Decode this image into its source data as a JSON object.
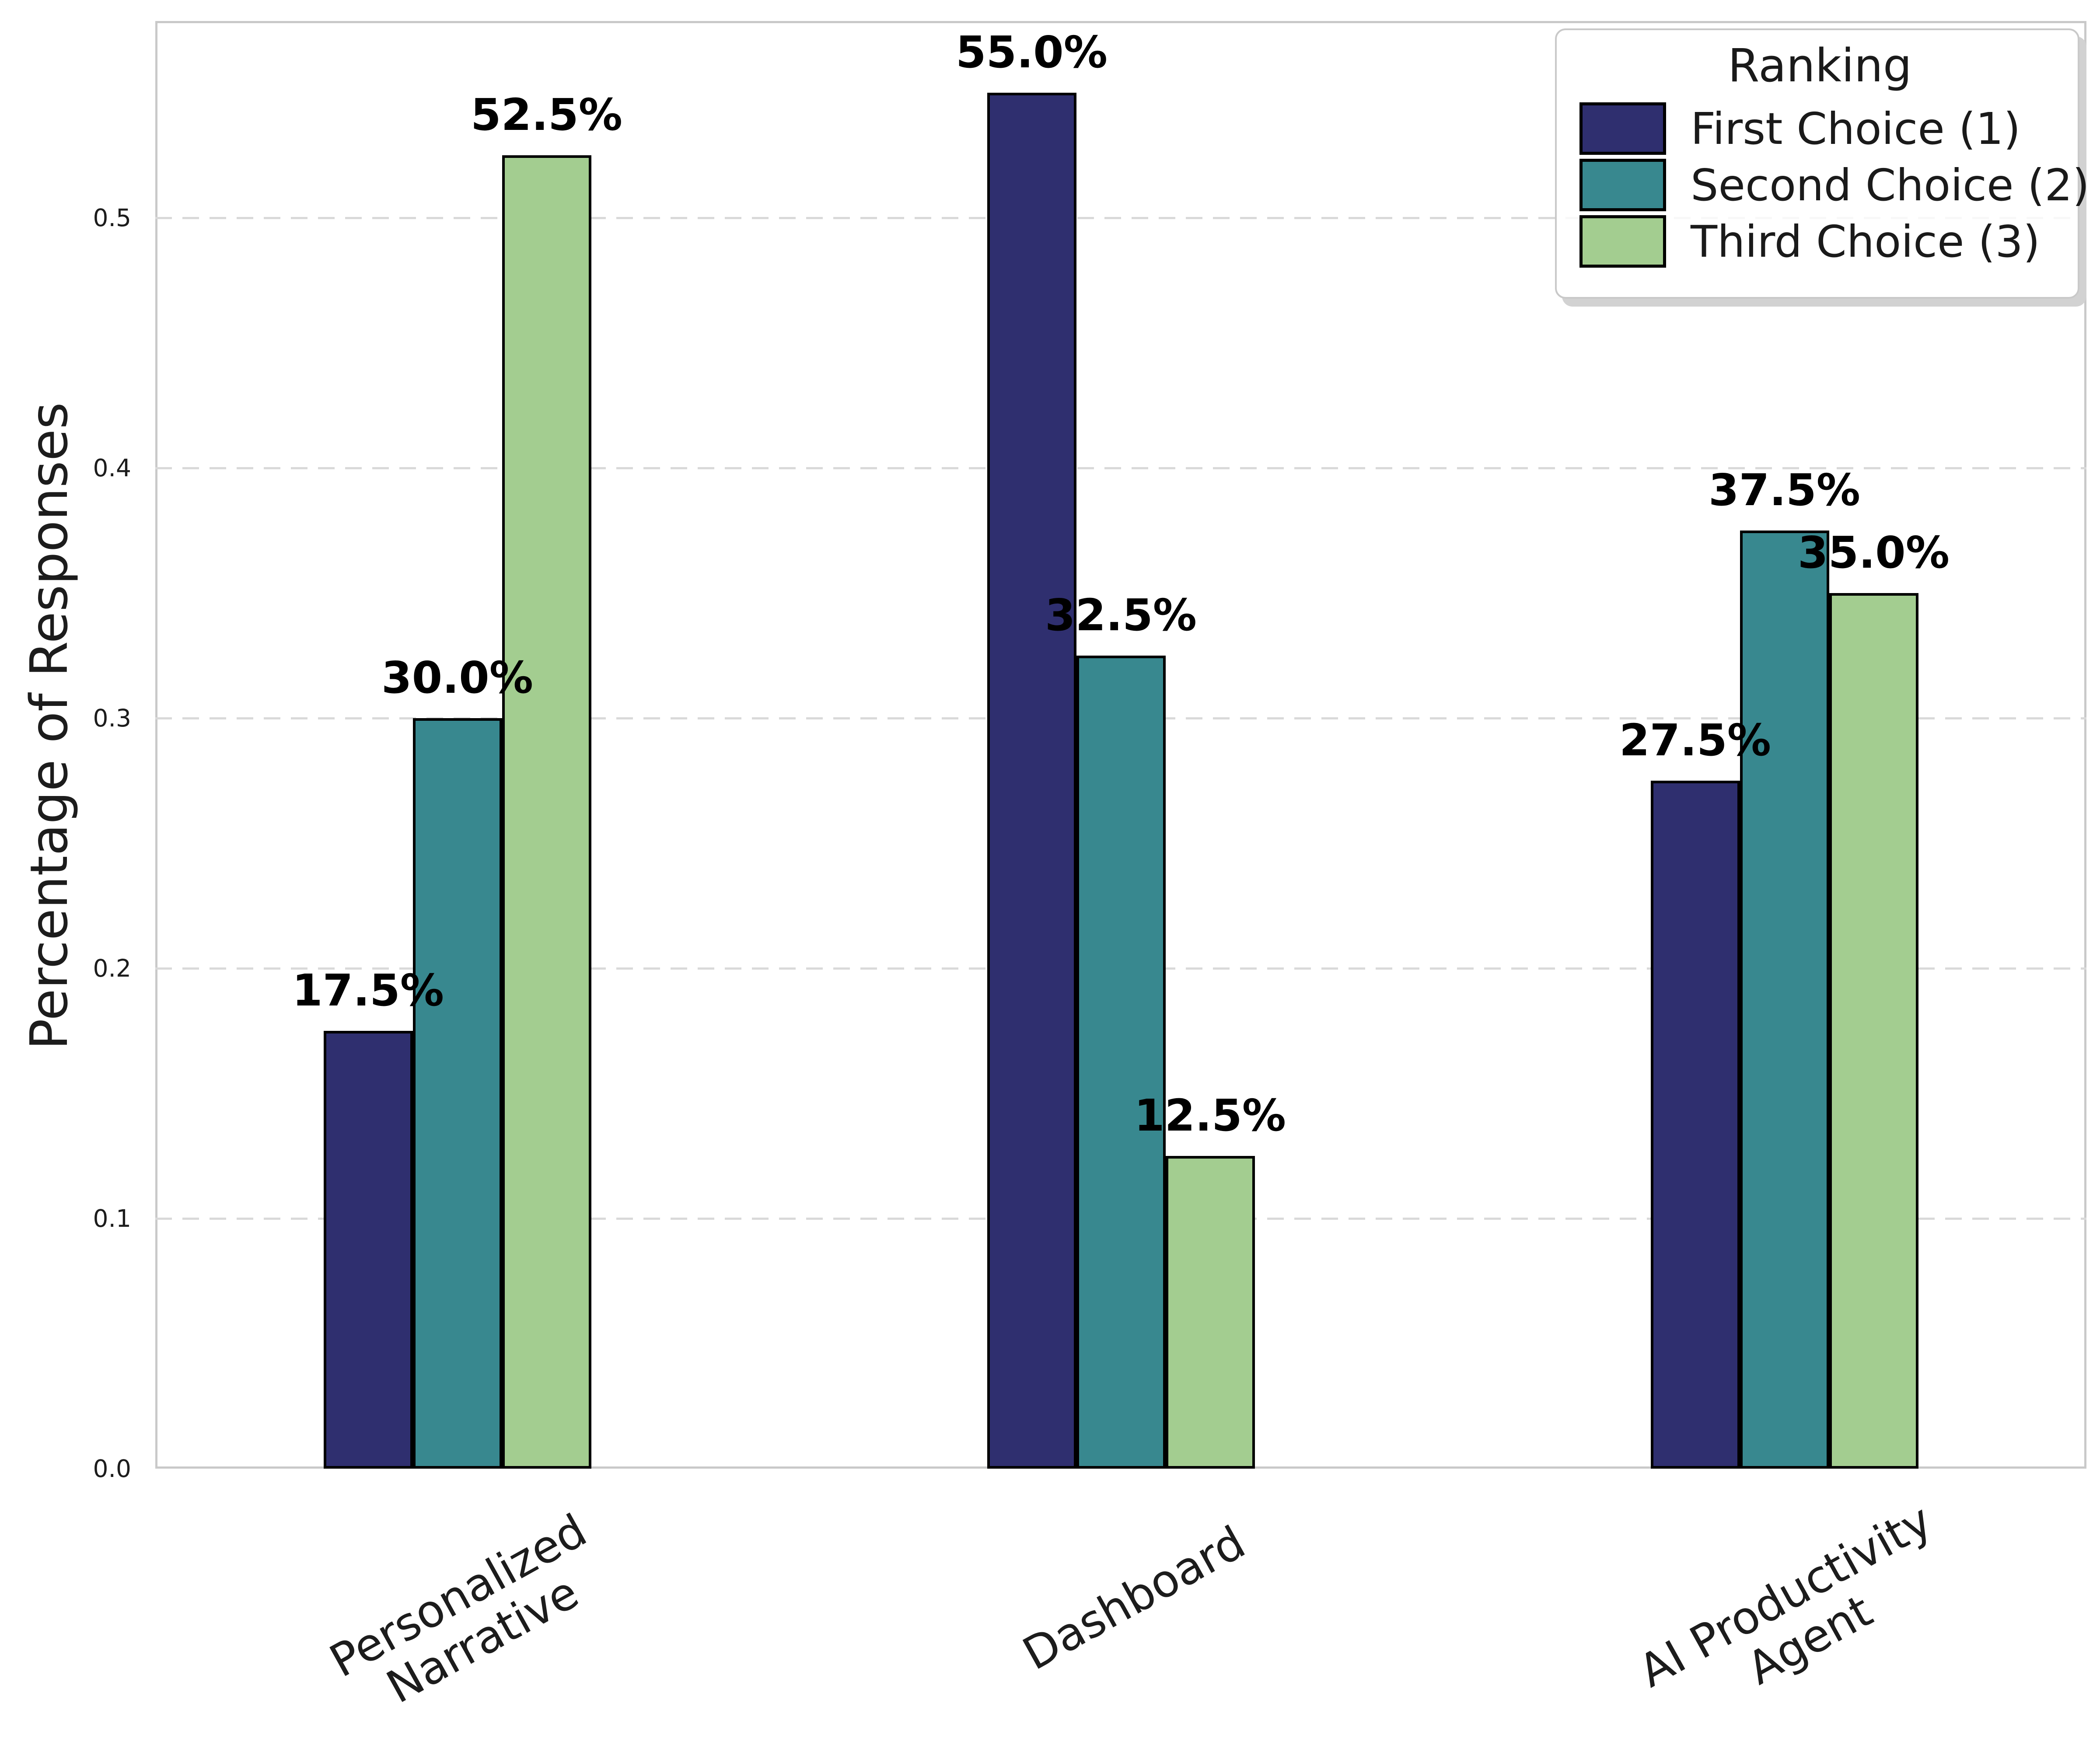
{
  "figure": {
    "background": "#ffffff",
    "text_color": "#1c1c1c",
    "spine_color": "#c9c9c9",
    "grid_color": "#d9d9d9",
    "bar_edge_color": "#000000"
  },
  "chart_data": {
    "type": "bar",
    "title": "",
    "xlabel": "",
    "ylabel": "Percentage of Responses",
    "categories": [
      "Personalized\nNarrative",
      "Dashboard",
      "AI Productivity\nAgent"
    ],
    "series": [
      {
        "name": "First Choice (1)",
        "color": "#2f2f6f",
        "values": [
          0.175,
          0.55,
          0.275
        ],
        "labels": [
          "17.5%",
          "55.0%",
          "27.5%"
        ]
      },
      {
        "name": "Second Choice (2)",
        "color": "#38888f",
        "values": [
          0.3,
          0.325,
          0.375
        ],
        "labels": [
          "30.0%",
          "32.5%",
          "37.5%"
        ]
      },
      {
        "name": "Third Choice (3)",
        "color": "#a3cd90",
        "values": [
          0.525,
          0.125,
          0.35
        ],
        "labels": [
          "52.5%",
          "12.5%",
          "35.0%"
        ]
      }
    ],
    "ylim": [
      0,
      0.5786
    ],
    "yticks": [
      0.0,
      0.1,
      0.2,
      0.3,
      0.4,
      0.5
    ],
    "ytick_labels": [
      "0.0",
      "0.1",
      "0.2",
      "0.3",
      "0.4",
      "0.5"
    ],
    "grid": "horizontal-dashed",
    "legend": {
      "title": "Ranking",
      "position": "upper-right"
    }
  }
}
